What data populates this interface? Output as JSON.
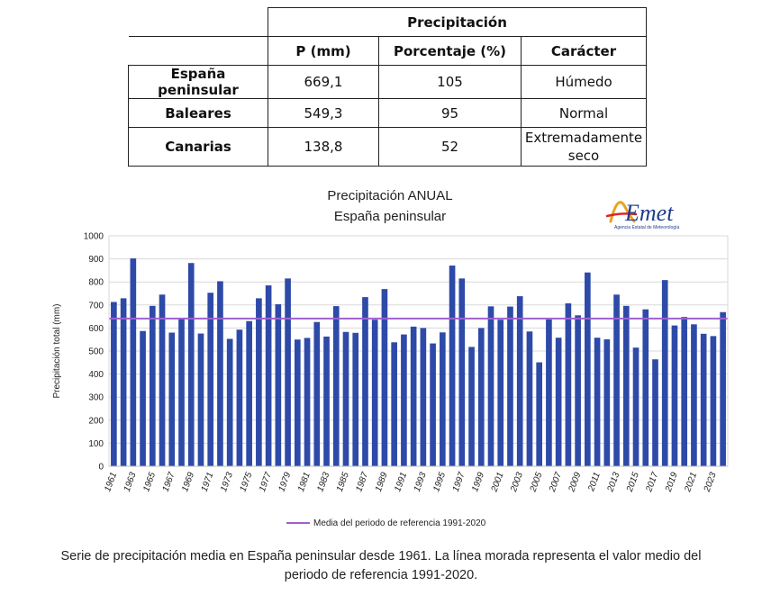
{
  "table": {
    "group_header": "Precipitación",
    "columns": [
      "P (mm)",
      "Porcentaje (%)",
      "Carácter"
    ],
    "rows": [
      {
        "region": "España peninsular",
        "p": "669,1",
        "pct": "105",
        "character": "Húmedo"
      },
      {
        "region": "Baleares",
        "p": "549,3",
        "pct": "95",
        "character": "Normal"
      },
      {
        "region": "Canarias",
        "p": "138,8",
        "pct": "52",
        "character_line1": "Extremadamente",
        "character_line2": "seco"
      }
    ]
  },
  "logo": {
    "brand": "AEmet",
    "subtitle": "Agencia Estatal de Meteorología"
  },
  "colors": {
    "bar": "#2E4AA8",
    "reference_line": "#A060D0",
    "grid": "#D9D9D9"
  },
  "chart_data": {
    "type": "bar",
    "title_line1": "Precipitación ANUAL",
    "title_line2": "España peninsular",
    "ylabel": "Precipitación total (mm)",
    "xlabel": "",
    "ylim": [
      0,
      1000
    ],
    "yticks": [
      0,
      100,
      200,
      300,
      400,
      500,
      600,
      700,
      800,
      900,
      1000
    ],
    "grid": true,
    "legend_position": "bottom",
    "x": [
      1961,
      1962,
      1963,
      1964,
      1965,
      1966,
      1967,
      1968,
      1969,
      1970,
      1971,
      1972,
      1973,
      1974,
      1975,
      1976,
      1977,
      1978,
      1979,
      1980,
      1981,
      1982,
      1983,
      1984,
      1985,
      1986,
      1987,
      1988,
      1989,
      1990,
      1991,
      1992,
      1993,
      1994,
      1995,
      1996,
      1997,
      1998,
      1999,
      2000,
      2001,
      2002,
      2003,
      2004,
      2005,
      2006,
      2007,
      2008,
      2009,
      2010,
      2011,
      2012,
      2013,
      2014,
      2015,
      2016,
      2017,
      2018,
      2019,
      2020,
      2021,
      2022,
      2023,
      2024
    ],
    "x_tick_labels": [
      "1961",
      "1963",
      "1965",
      "1967",
      "1969",
      "1971",
      "1973",
      "1975",
      "1977",
      "1979",
      "1981",
      "1983",
      "1985",
      "1987",
      "1989",
      "1991",
      "1993",
      "1995",
      "1997",
      "1999",
      "2001",
      "2003",
      "2005",
      "2007",
      "2009",
      "2011",
      "2013",
      "2015",
      "2017",
      "2019",
      "2021",
      "2023"
    ],
    "series": [
      {
        "name": "",
        "values": [
          713,
          729,
          902,
          587,
          696,
          745,
          580,
          641,
          882,
          576,
          753,
          803,
          553,
          593,
          630,
          729,
          785,
          703,
          815,
          550,
          557,
          626,
          563,
          695,
          583,
          579,
          734,
          636,
          769,
          538,
          572,
          606,
          600,
          533,
          581,
          871,
          815,
          518,
          600,
          694,
          636,
          693,
          738,
          585,
          451,
          637,
          558,
          707,
          655,
          841,
          558,
          551,
          745,
          696,
          515,
          681,
          464,
          808,
          611,
          648,
          616,
          575,
          565,
          669
        ]
      }
    ],
    "reference_line": {
      "name": "Media del periodo de referencia 1991-2020",
      "value": 641
    }
  },
  "caption": {
    "line1": "Serie de precipitación media en España peninsular desde 1961. La línea morada representa el valor medio del",
    "line2": "periodo de referencia 1991-2020."
  }
}
